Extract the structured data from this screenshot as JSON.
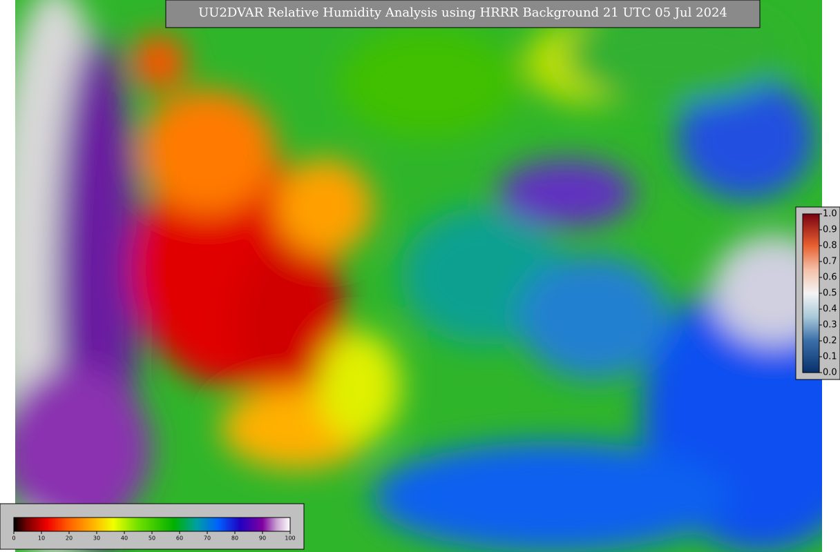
{
  "title": "UU2DVAR Relative Humidity Analysis using HRRR Background 21 UTC 05 Jul 2024",
  "humidity_colorbar": {
    "ticks": [
      0,
      10,
      20,
      30,
      40,
      50,
      60,
      70,
      80,
      90,
      100
    ]
  },
  "observation_colorbar": {
    "ticks": [
      {
        "value": 0.0,
        "label": "0.0"
      },
      {
        "value": 0.1,
        "label": "0.1"
      },
      {
        "value": 0.2,
        "label": "0.2"
      },
      {
        "value": 0.3,
        "label": "0.3"
      },
      {
        "value": 0.4,
        "label": "0.4"
      },
      {
        "value": 0.5,
        "label": "0.5"
      },
      {
        "value": 0.6,
        "label": "0.6"
      },
      {
        "value": 0.7,
        "label": "0.7"
      },
      {
        "value": 0.8,
        "label": "0.8"
      },
      {
        "value": 0.9,
        "label": "0.9"
      },
      {
        "value": 1.0,
        "label": "1.0"
      }
    ]
  }
}
